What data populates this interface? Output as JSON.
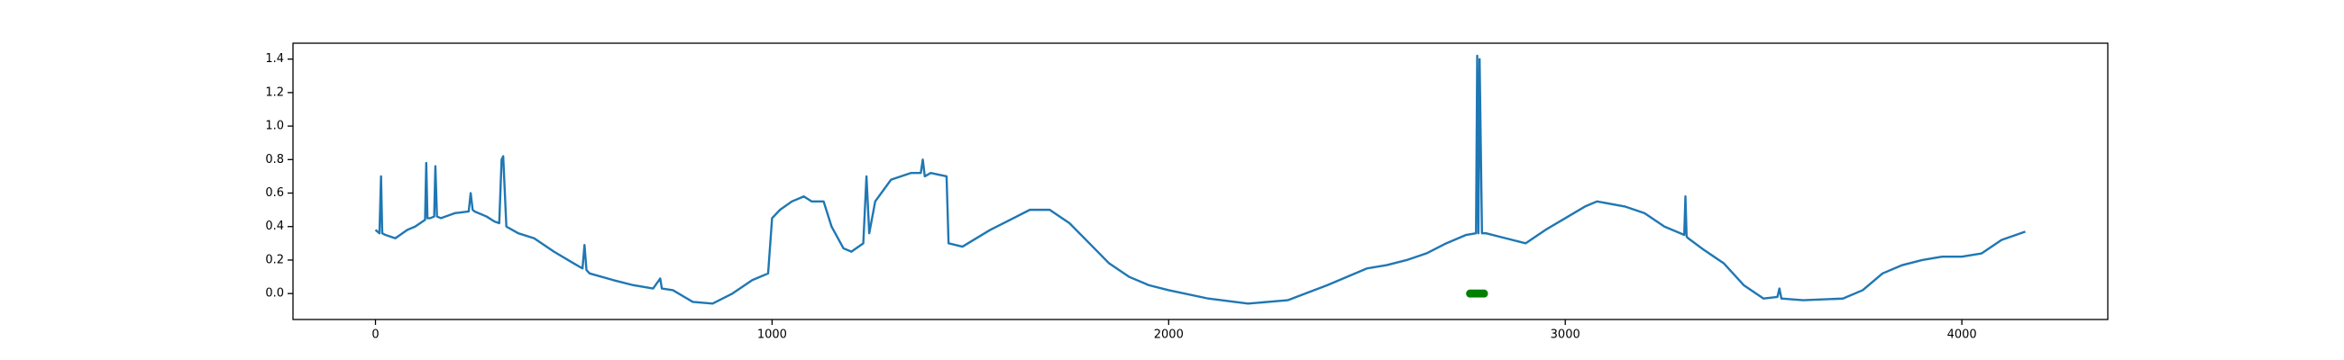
{
  "chart_data": {
    "type": "line",
    "xlim": [
      -208,
      4368
    ],
    "ylim": [
      -0.155,
      1.495
    ],
    "xticks": [
      0,
      1000,
      2000,
      3000,
      4000
    ],
    "yticks": [
      {
        "value": 0,
        "label": "0.0"
      },
      0.2,
      0.4,
      0.6,
      0.8,
      {
        "value": 1,
        "label": "1.0"
      },
      1.2,
      1.4
    ],
    "grid": false,
    "series": [
      {
        "type": "line",
        "color": "#1f77b4",
        "x": [
          0,
          10,
          14,
          17,
          25,
          50,
          80,
          100,
          125,
          128,
          131,
          138,
          148,
          151,
          155,
          165,
          200,
          235,
          240,
          245,
          250,
          280,
          300,
          312,
          318,
          322,
          330,
          360,
          400,
          450,
          500,
          522,
          527,
          532,
          540,
          600,
          650,
          700,
          718,
          722,
          750,
          800,
          850,
          900,
          950,
          990,
          1000,
          1020,
          1050,
          1080,
          1100,
          1130,
          1150,
          1180,
          1200,
          1230,
          1238,
          1245,
          1260,
          1300,
          1350,
          1375,
          1380,
          1385,
          1400,
          1440,
          1445,
          1480,
          1550,
          1600,
          1650,
          1700,
          1750,
          1800,
          1850,
          1900,
          1950,
          2000,
          2100,
          2200,
          2300,
          2400,
          2500,
          2550,
          2600,
          2650,
          2700,
          2750,
          2775,
          2778,
          2781,
          2784,
          2790,
          2800,
          2850,
          2900,
          2950,
          3000,
          3050,
          3080,
          3150,
          3200,
          3250,
          3300,
          3303,
          3306,
          3310,
          3350,
          3400,
          3450,
          3500,
          3535,
          3540,
          3545,
          3600,
          3700,
          3750,
          3800,
          3850,
          3900,
          3950,
          4000,
          4050,
          4100,
          4160
        ],
        "values": [
          0.38,
          0.36,
          0.7,
          0.36,
          0.35,
          0.33,
          0.38,
          0.4,
          0.44,
          0.78,
          0.45,
          0.45,
          0.46,
          0.76,
          0.46,
          0.45,
          0.48,
          0.49,
          0.6,
          0.5,
          0.49,
          0.46,
          0.43,
          0.42,
          0.8,
          0.82,
          0.4,
          0.36,
          0.33,
          0.25,
          0.18,
          0.15,
          0.29,
          0.14,
          0.12,
          0.08,
          0.05,
          0.03,
          0.09,
          0.03,
          0.02,
          -0.05,
          -0.06,
          0.0,
          0.08,
          0.12,
          0.45,
          0.5,
          0.55,
          0.58,
          0.55,
          0.55,
          0.4,
          0.27,
          0.25,
          0.3,
          0.7,
          0.36,
          0.55,
          0.68,
          0.72,
          0.72,
          0.8,
          0.7,
          0.72,
          0.7,
          0.3,
          0.28,
          0.38,
          0.44,
          0.5,
          0.5,
          0.42,
          0.3,
          0.18,
          0.1,
          0.05,
          0.02,
          -0.03,
          -0.06,
          -0.04,
          0.05,
          0.15,
          0.17,
          0.2,
          0.24,
          0.3,
          0.35,
          0.36,
          1.42,
          0.36,
          1.4,
          0.36,
          0.36,
          0.33,
          0.3,
          0.38,
          0.45,
          0.52,
          0.55,
          0.52,
          0.48,
          0.4,
          0.35,
          0.58,
          0.34,
          0.33,
          0.26,
          0.18,
          0.05,
          -0.03,
          -0.02,
          0.03,
          -0.03,
          -0.04,
          -0.03,
          0.02,
          0.12,
          0.17,
          0.2,
          0.22,
          0.22,
          0.24,
          0.32,
          0.37
        ]
      },
      {
        "type": "scatter",
        "color": "#008000",
        "x": [
          2760,
          2765,
          2770,
          2775,
          2780,
          2785,
          2790,
          2795
        ],
        "values": [
          0,
          0,
          0,
          0,
          0,
          0,
          0,
          0
        ]
      }
    ]
  }
}
